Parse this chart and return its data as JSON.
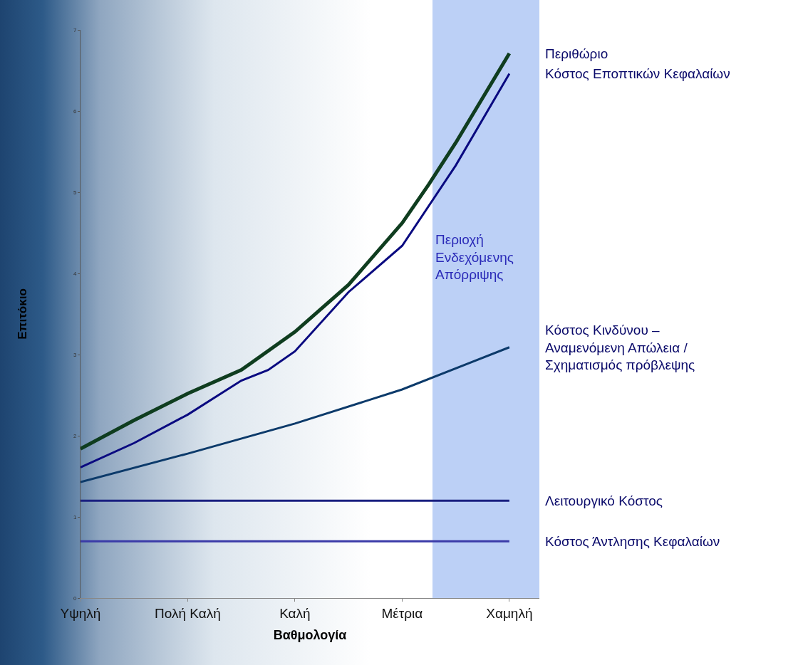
{
  "chart_data": {
    "type": "line",
    "xlabel": "Βαθμολογία",
    "ylabel": "Επιτόκιο",
    "categories": [
      "Υψηλή",
      null,
      null,
      null,
      "Πολή Καλή",
      null,
      null,
      null,
      "Καλή",
      null,
      null,
      null,
      "Μέτρια",
      null,
      null,
      null,
      "Χαμηλή"
    ],
    "ylim": [
      0,
      7
    ],
    "yticks": [
      0,
      1,
      2,
      3,
      4,
      5,
      6,
      7
    ],
    "grid": false,
    "legend": false,
    "marker": "none",
    "line_style": "solid",
    "series": [
      {
        "name": "Περιθώριο",
        "color": "#0f3d1f",
        "values": [
          1.84,
          null,
          2.19,
          null,
          2.52,
          null,
          2.81,
          null,
          3.28,
          null,
          3.86,
          null,
          4.62,
          5.1,
          5.61,
          null,
          6.71
        ]
      },
      {
        "name": "Κόστος Εποπτικών Κεφαλαίων",
        "color": "#0a0a80",
        "values": [
          1.61,
          null,
          1.91,
          null,
          2.26,
          null,
          2.68,
          2.81,
          3.04,
          null,
          3.77,
          null,
          4.34,
          null,
          5.33,
          null,
          6.46
        ]
      },
      {
        "name": "Κόστος Κινδύνου –\nΑναμενόμενη Απώλεια /\nΣχηματισμός πρόβλεψης",
        "color": "#0c3a6a",
        "values": [
          1.43,
          null,
          null,
          null,
          1.78,
          null,
          null,
          null,
          2.15,
          null,
          null,
          null,
          2.57,
          null,
          null,
          null,
          3.09
        ]
      },
      {
        "name": "Λειτουργικό Κόστος",
        "color": "#1a2080",
        "values": [
          1.2,
          null,
          null,
          null,
          1.2,
          null,
          null,
          null,
          1.2,
          null,
          null,
          null,
          1.2,
          null,
          null,
          null,
          1.2
        ]
      },
      {
        "name": "Κόστος Άντλησης Κεφαλαίων",
        "color": "#3a3aa8",
        "values": [
          0.7,
          null,
          null,
          null,
          0.7,
          null,
          null,
          null,
          0.7,
          null,
          null,
          null,
          0.7,
          null,
          null,
          null,
          0.7
        ]
      }
    ],
    "annotations": [
      "Περιοχή\nΕνδεχόμενης\nΑπόρριψης"
    ]
  }
}
